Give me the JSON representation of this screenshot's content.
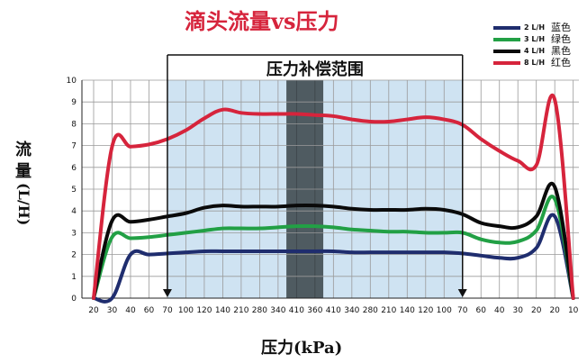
{
  "title": "滴头流量vs压力",
  "ylabel": [
    "流",
    "量",
    "(L/H)"
  ],
  "xlabel": "压力(kPa)",
  "legend": [
    {
      "unit": "2 L/H",
      "label": "蓝色",
      "color": "#1f2d6e"
    },
    {
      "unit": "3 L/H",
      "label": "绿色",
      "color": "#22a045"
    },
    {
      "unit": "4 L/H",
      "label": "黑色",
      "color": "#0a0a0a"
    },
    {
      "unit": "8 L/H",
      "label": "红色",
      "color": "#d6243c"
    }
  ],
  "chart_data": {
    "type": "line",
    "title": "滴头流量vs压力",
    "xlabel": "压力(kPa)",
    "ylabel": "流量(L/H)",
    "ylim": [
      0,
      10
    ],
    "yticks": [
      0,
      1,
      2,
      3,
      4,
      5,
      6,
      7,
      8,
      9,
      10
    ],
    "grid": true,
    "legend_position": "top-right",
    "categories": [
      "20",
      "30",
      "40",
      "60",
      "70",
      "100",
      "120",
      "140",
      "210",
      "280",
      "340",
      "410",
      "360",
      "410",
      "340",
      "280",
      "210",
      "140",
      "120",
      "100",
      "70",
      "60",
      "40",
      "30",
      "20",
      "20",
      "10"
    ],
    "compensation_range": {
      "label": "压力补偿范围",
      "from": "70",
      "to": "70"
    },
    "series": [
      {
        "name": "2 L/H",
        "label": "蓝色",
        "color": "#1f2d6e",
        "values": [
          0,
          0,
          2.0,
          2.0,
          2.05,
          2.1,
          2.15,
          2.15,
          2.15,
          2.15,
          2.15,
          2.15,
          2.15,
          2.15,
          2.1,
          2.1,
          2.1,
          2.1,
          2.1,
          2.1,
          2.05,
          1.95,
          1.85,
          1.85,
          2.3,
          3.75,
          0
        ]
      },
      {
        "name": "3 L/H",
        "label": "绿色",
        "color": "#22a045",
        "values": [
          0,
          2.8,
          2.75,
          2.8,
          2.9,
          3.0,
          3.1,
          3.2,
          3.2,
          3.2,
          3.25,
          3.3,
          3.3,
          3.25,
          3.15,
          3.1,
          3.05,
          3.05,
          3.0,
          3.0,
          3.0,
          2.7,
          2.55,
          2.6,
          3.1,
          4.55,
          0
        ]
      },
      {
        "name": "4 L/H",
        "label": "黑色",
        "color": "#0a0a0a",
        "values": [
          0,
          3.55,
          3.5,
          3.6,
          3.75,
          3.9,
          4.15,
          4.25,
          4.2,
          4.2,
          4.2,
          4.25,
          4.25,
          4.2,
          4.1,
          4.05,
          4.05,
          4.05,
          4.1,
          4.05,
          3.85,
          3.45,
          3.3,
          3.25,
          3.75,
          5.1,
          0
        ]
      },
      {
        "name": "8 L/H",
        "label": "红色",
        "color": "#d6243c",
        "values": [
          0,
          6.95,
          6.95,
          7.05,
          7.3,
          7.7,
          8.25,
          8.65,
          8.5,
          8.45,
          8.45,
          8.45,
          8.4,
          8.35,
          8.2,
          8.1,
          8.1,
          8.2,
          8.3,
          8.2,
          7.95,
          7.3,
          6.75,
          6.3,
          6.1,
          9.1,
          0
        ]
      }
    ]
  }
}
